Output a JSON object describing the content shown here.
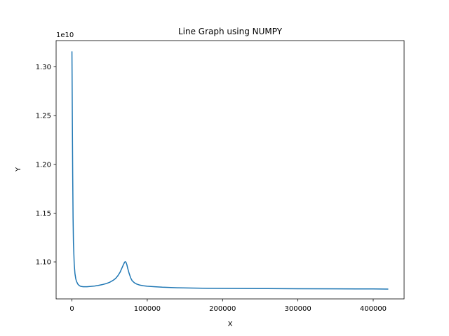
{
  "chart_data": {
    "type": "line",
    "title": "Line Graph using NUMPY",
    "xlabel": "X",
    "ylabel": "Y",
    "y_offset_label": "1e10",
    "y_scale_factor": 10000000000,
    "xlim": [
      -21000,
      441000
    ],
    "ylim": [
      10620000000,
      13270000000
    ],
    "grid": false,
    "line_color": "#1f77b4",
    "x_ticks": [
      0,
      100000,
      200000,
      300000,
      400000
    ],
    "x_tick_labels": [
      "0",
      "100000",
      "200000",
      "300000",
      "400000"
    ],
    "y_ticks": [
      11000000000,
      11500000000,
      12000000000,
      12500000000,
      13000000000
    ],
    "y_tick_labels": [
      "1.10",
      "1.15",
      "1.20",
      "1.25",
      "1.30"
    ],
    "series": [
      {
        "x": [
          0,
          500,
          1000,
          1500,
          2000,
          3000,
          4000,
          5000,
          6000,
          8000,
          10000,
          12000,
          15000,
          20000,
          25000,
          30000,
          35000,
          40000,
          45000,
          50000,
          55000,
          58000,
          61000,
          64000,
          66000,
          68000,
          70000,
          71000,
          72000,
          73000,
          74000,
          76000,
          78000,
          80000,
          83000,
          86000,
          90000,
          95000,
          100000,
          110000,
          120000,
          140000,
          160000,
          180000,
          200000,
          250000,
          300000,
          350000,
          400000,
          420000
        ],
        "y": [
          13160000000,
          12500000000,
          11900000000,
          11450000000,
          11200000000,
          10980000000,
          10880000000,
          10830000000,
          10800000000,
          10770000000,
          10755000000,
          10748000000,
          10745000000,
          10745000000,
          10748000000,
          10752000000,
          10758000000,
          10766000000,
          10776000000,
          10790000000,
          10812000000,
          10830000000,
          10858000000,
          10895000000,
          10930000000,
          10965000000,
          10998000000,
          11002000000,
          10992000000,
          10968000000,
          10935000000,
          10880000000,
          10835000000,
          10806000000,
          10785000000,
          10772000000,
          10762000000,
          10755000000,
          10750000000,
          10745000000,
          10740000000,
          10734000000,
          10731000000,
          10729000000,
          10728000000,
          10726000000,
          10724000000,
          10723000000,
          10722000000,
          10721000000
        ]
      }
    ]
  }
}
